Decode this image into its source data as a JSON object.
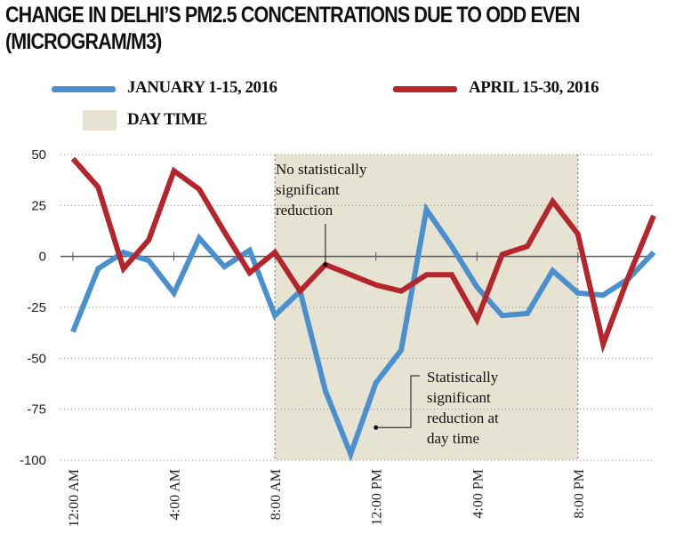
{
  "title_line1": "CHANGE IN DELHI’S PM2.5 CONCENTRATIONS DUE TO ODD EVEN",
  "title_line2": "(MICROGRAM/M3)",
  "legend": {
    "series1": "JANUARY 1-15, 2016",
    "series2": "APRIL 15-30, 2016",
    "daytime": "DAY TIME"
  },
  "colors": {
    "series1": "#4a90cf",
    "series2": "#b5252c",
    "daytime": "#e6e3d3"
  },
  "annotations": {
    "no_reduction": [
      "No statistically",
      "significant",
      "reduction"
    ],
    "reduction": [
      "Statistically",
      "significant",
      "reduction at",
      "day time"
    ]
  },
  "chart_data": {
    "type": "line",
    "x": [
      0,
      1,
      2,
      3,
      4,
      5,
      6,
      7,
      8,
      9,
      10,
      11,
      12,
      13,
      14,
      15,
      16,
      17,
      18,
      19,
      20,
      21,
      22,
      23
    ],
    "x_range": [
      0,
      23
    ],
    "xtick_positions": [
      0,
      4,
      8,
      12,
      16,
      20
    ],
    "xtick_labels": [
      "12:00 AM",
      "4:00 AM",
      "8:00 AM",
      "12:00 PM",
      "4:00 PM",
      "8:00 PM"
    ],
    "ylim": [
      -100,
      50
    ],
    "yticks": [
      50,
      25,
      0,
      -25,
      -50,
      -75,
      -100
    ],
    "grid": "horizontal dotted",
    "daytime_range": [
      8,
      20
    ],
    "series": [
      {
        "name": "JANUARY 1-15, 2016",
        "values": [
          -37,
          -6,
          2,
          -2,
          -18,
          9,
          -5,
          3,
          -29,
          -17,
          -66,
          -97,
          -62,
          -46,
          23,
          5,
          -15,
          -29,
          -28,
          -7,
          -18,
          -19,
          -11,
          2
        ]
      },
      {
        "name": "APRIL 15-30, 2016",
        "values": [
          48,
          34,
          -6,
          8,
          42,
          33,
          12,
          -8,
          2,
          -17,
          -4,
          -9,
          -14,
          -17,
          -9,
          -9,
          -31,
          1,
          5,
          27,
          11,
          -43,
          -10,
          20
        ]
      }
    ]
  }
}
